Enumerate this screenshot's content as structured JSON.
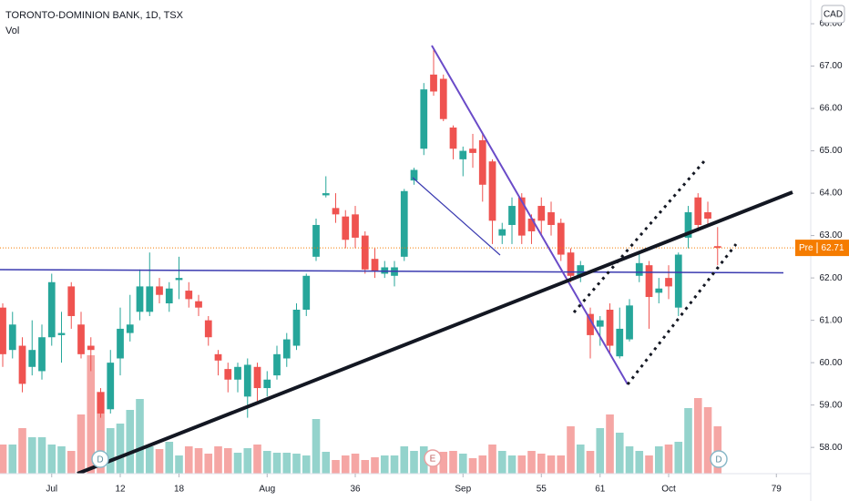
{
  "chart_data": {
    "type": "candlestick",
    "title": "TORONTO-DOMINION BANK, 1D, TSX",
    "volume_label": "Vol",
    "currency": "CAD",
    "up_color": "#26a69a",
    "down_color": "#ef5350",
    "volume_up_color": "#94d3cc",
    "volume_down_color": "#f5a6a4",
    "open": [
      61.3,
      60.3,
      60.4,
      59.9,
      59.8,
      60.6,
      60.65,
      61.8,
      60.9,
      60.4,
      59.3,
      58.9,
      60.1,
      60.7,
      61.2,
      61.2,
      61.8,
      61.4,
      61.95,
      61.7,
      61.45,
      61.0,
      60.2,
      59.85,
      59.6,
      59.2,
      59.9,
      59.4,
      59.7,
      60.1,
      60.4,
      61.25,
      62.5,
      63.95,
      63.65,
      63.45,
      63.5,
      63.0,
      62.45,
      62.1,
      62.05,
      62.5,
      64.3,
      65.05,
      66.8,
      66.7,
      65.55,
      64.8,
      65.05,
      65.25,
      64.75,
      63.0,
      63.25,
      63.9,
      63.4,
      63.7,
      63.55,
      63.3,
      62.6,
      62.05,
      61.15,
      60.85,
      61.25,
      60.15,
      60.55,
      62.05,
      62.3,
      61.65,
      62.0,
      61.3,
      62.95,
      63.9,
      63.55,
      62.75
    ],
    "high": [
      61.4,
      61.2,
      60.6,
      61.0,
      60.9,
      62.1,
      61.2,
      61.9,
      61.2,
      60.6,
      59.4,
      60.3,
      61.3,
      61.6,
      62.2,
      62.6,
      62.0,
      61.9,
      62.5,
      61.9,
      61.6,
      61.1,
      60.3,
      60.0,
      60.0,
      60.1,
      60.0,
      59.8,
      60.4,
      60.7,
      61.4,
      62.1,
      63.4,
      64.4,
      64.0,
      63.6,
      63.7,
      63.1,
      62.7,
      62.4,
      62.4,
      64.1,
      64.6,
      66.6,
      67.4,
      66.8,
      65.6,
      65.1,
      65.4,
      65.4,
      64.8,
      63.3,
      63.9,
      64.0,
      63.5,
      63.9,
      63.8,
      63.4,
      62.7,
      62.4,
      61.3,
      61.1,
      61.4,
      61.3,
      61.5,
      62.6,
      62.4,
      62.0,
      62.3,
      62.6,
      63.7,
      64.0,
      63.8,
      63.2
    ],
    "low": [
      59.9,
      60.1,
      59.3,
      59.7,
      59.6,
      60.4,
      60.0,
      60.8,
      60.1,
      59.8,
      58.7,
      58.8,
      59.7,
      60.5,
      61.0,
      61.1,
      61.4,
      61.2,
      61.5,
      61.3,
      61.1,
      60.4,
      59.7,
      59.3,
      59.3,
      58.7,
      59.1,
      59.2,
      59.6,
      59.9,
      60.3,
      61.1,
      62.4,
      63.9,
      63.3,
      62.7,
      62.7,
      62.1,
      62.0,
      62.0,
      61.8,
      62.4,
      64.2,
      64.9,
      66.3,
      65.7,
      64.8,
      64.4,
      64.6,
      63.8,
      62.8,
      62.8,
      62.8,
      62.8,
      62.8,
      63.0,
      63.0,
      62.4,
      61.9,
      61.9,
      60.1,
      60.4,
      60.2,
      60.1,
      60.5,
      61.9,
      60.8,
      61.4,
      61.5,
      61.1,
      62.7,
      63.1,
      63.2,
      62.3
    ],
    "close": [
      60.2,
      60.9,
      59.5,
      60.3,
      60.6,
      61.9,
      60.7,
      61.1,
      60.2,
      60.3,
      58.8,
      60.0,
      60.8,
      60.9,
      61.8,
      61.8,
      61.6,
      61.75,
      62.0,
      61.5,
      61.3,
      60.6,
      60.05,
      59.6,
      59.9,
      59.95,
      59.4,
      59.6,
      60.2,
      60.55,
      61.25,
      62.05,
      63.25,
      64.0,
      63.5,
      62.9,
      62.95,
      62.2,
      62.15,
      62.25,
      62.25,
      64.05,
      64.55,
      66.45,
      66.4,
      65.75,
      65.05,
      65.0,
      64.95,
      64.2,
      63.35,
      63.15,
      63.7,
      63.0,
      63.1,
      63.35,
      63.25,
      62.55,
      62.05,
      62.3,
      60.65,
      61.0,
      60.4,
      60.8,
      61.35,
      62.35,
      61.55,
      61.75,
      61.8,
      62.55,
      63.55,
      63.25,
      63.4,
      62.71
    ],
    "volume": [
      32,
      32,
      50,
      40,
      40,
      32,
      30,
      25,
      65,
      130,
      90,
      50,
      55,
      70,
      82,
      30,
      27,
      35,
      20,
      30,
      28,
      22,
      30,
      28,
      23,
      28,
      32,
      25,
      23,
      23,
      22,
      20,
      60,
      24,
      15,
      20,
      22,
      15,
      18,
      20,
      20,
      30,
      25,
      30,
      25,
      24,
      25,
      22,
      17,
      20,
      32,
      25,
      20,
      20,
      25,
      22,
      20,
      20,
      52,
      32,
      25,
      50,
      65,
      45,
      30,
      25,
      20,
      30,
      32,
      35,
      72,
      83,
      73,
      52
    ],
    "events": [
      "D",
      "E",
      "D"
    ],
    "last_price_label": "Pre",
    "last_price": 62.71,
    "xlim": [
      -0.28,
      82.51
    ],
    "xticks": [
      {
        "value": 5,
        "label": "Jul"
      },
      12,
      18,
      {
        "value": 27,
        "label": "Aug"
      },
      36,
      {
        "value": 47,
        "label": "Sep"
      },
      55,
      61,
      {
        "value": 68,
        "label": "Oct"
      },
      79
    ],
    "ylim": [
      57.38,
      68.56
    ],
    "yticks": [
      {
        "value": 58,
        "label": "58.00"
      },
      {
        "value": 59,
        "label": "59.00"
      },
      {
        "value": 60,
        "label": "60.00"
      },
      {
        "value": 61,
        "label": "61.00"
      },
      {
        "value": 62,
        "label": "62.00"
      },
      {
        "value": 63,
        "label": "63.00"
      },
      {
        "value": 64,
        "label": "64.00"
      },
      {
        "value": 65,
        "label": "65.00"
      },
      {
        "value": 66,
        "label": "66.00"
      },
      {
        "value": 67,
        "label": "67.00"
      },
      {
        "value": 68,
        "label": "68.00"
      }
    ]
  }
}
